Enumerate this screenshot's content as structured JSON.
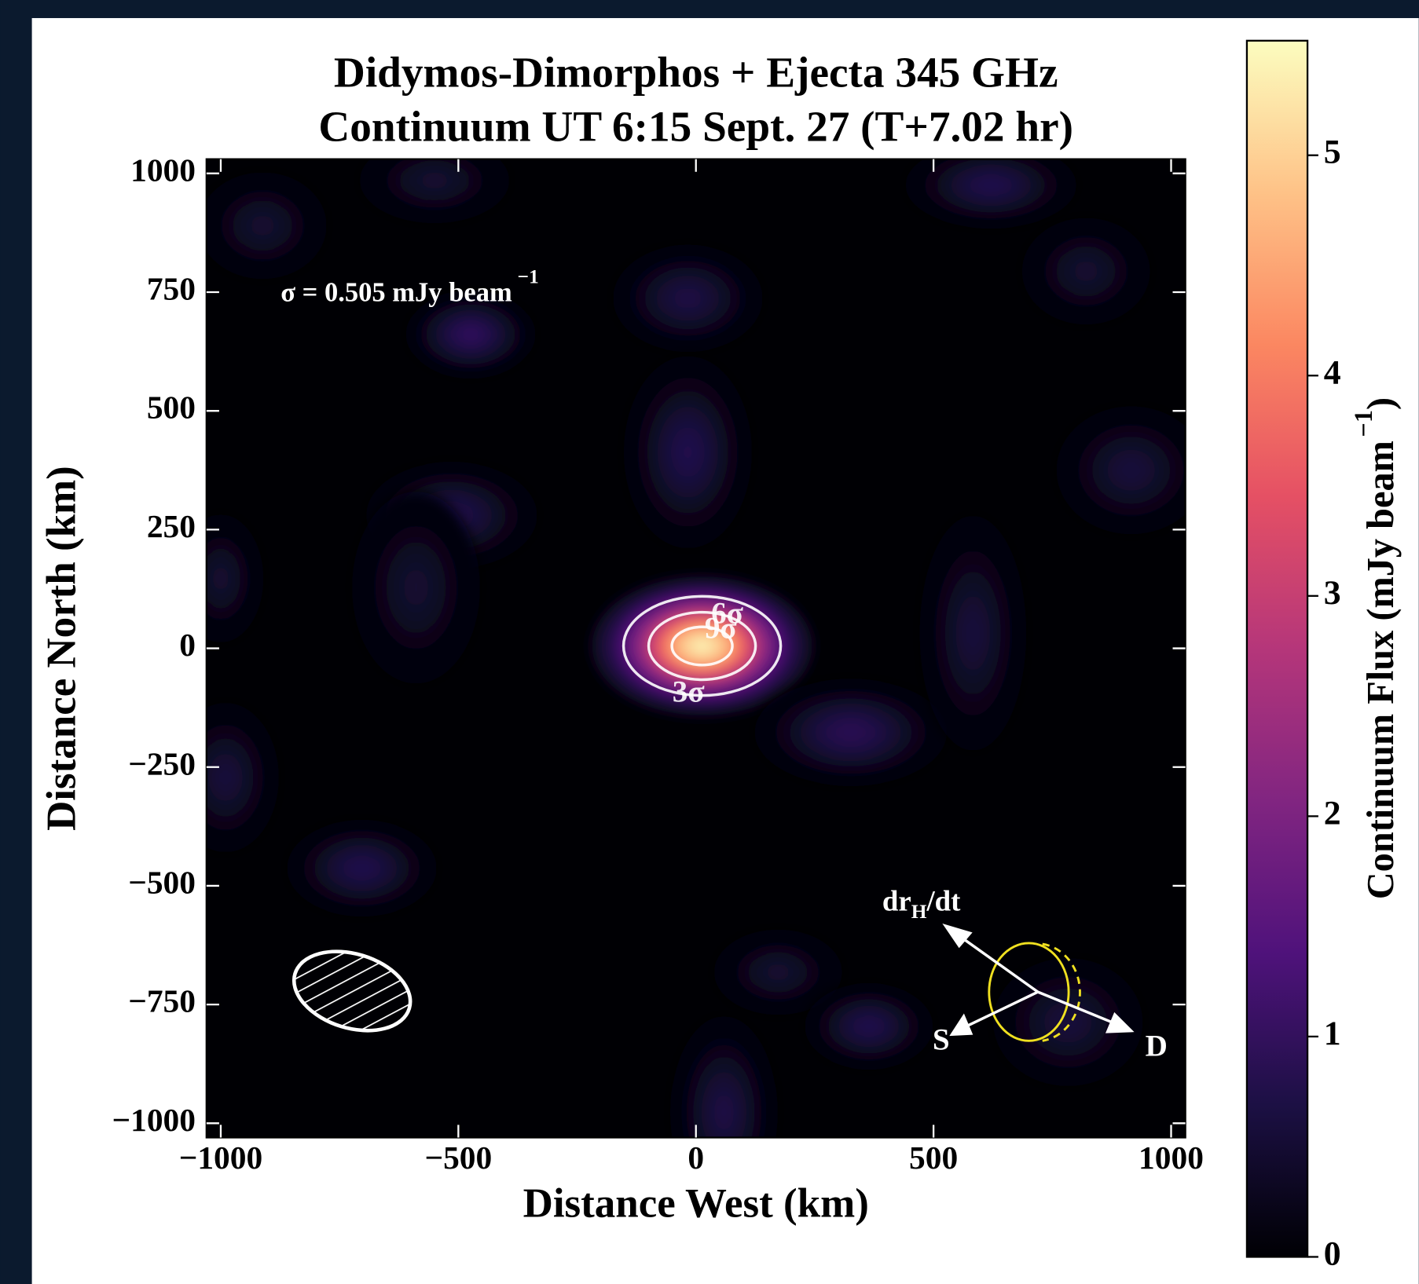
{
  "chart_data": {
    "type": "heatmap",
    "title": [
      "Didymos-Dimorphos + Ejecta 345 GHz",
      "Continuum UT 6:15 Sept. 27 (T+7.02 hr)"
    ],
    "x_label": "Distance West (km)",
    "y_label": "Distance North (km)",
    "xlim": [
      -1030,
      1030
    ],
    "ylim": [
      -1030,
      1030
    ],
    "xticks": [
      {
        "value": -1000,
        "label": "−1000"
      },
      {
        "value": -500,
        "label": "−500"
      },
      0,
      500,
      1000
    ],
    "yticks": [
      1000,
      750,
      500,
      250,
      0,
      {
        "value": -250,
        "label": "−250"
      },
      {
        "value": -500,
        "label": "−500"
      },
      {
        "value": -750,
        "label": "−750"
      },
      {
        "value": -1000,
        "label": "−1000"
      }
    ],
    "colormap": [
      "#000004",
      "#1c1044",
      "#4f127b",
      "#812581",
      "#b5367a",
      "#e55064",
      "#fb8761",
      "#fec287",
      "#fcfdbf"
    ],
    "colorbar": {
      "label": [
        "Continuum Flux (mJy beam",
        "−1",
        ")"
      ],
      "lim": [
        0,
        5.52
      ],
      "ticks": [
        0,
        1,
        2,
        3,
        4,
        5
      ]
    },
    "sigma": {
      "value": 0.505,
      "label": "σ = 0.505 mJy beam"
    },
    "sigma_exponent": "−1",
    "contours": [
      {
        "value": 3,
        "label": "3σ"
      },
      {
        "value": 6,
        "label": "6σ"
      },
      {
        "value": 9,
        "label": "9σ"
      }
    ],
    "blobs": [
      {
        "x": 13,
        "y": 5,
        "sx": 103,
        "sy": 65,
        "value": 5.5
      },
      {
        "x": -474,
        "y": 661,
        "sx": 60,
        "sy": 40,
        "value": 1.0
      },
      {
        "x": 621,
        "y": 975,
        "sx": 80,
        "sy": 40,
        "value": 0.8
      },
      {
        "x": -17,
        "y": 737,
        "sx": 70,
        "sy": 50,
        "value": 0.7
      },
      {
        "x": -17,
        "y": 413,
        "sx": 60,
        "sy": 90,
        "value": 0.8
      },
      {
        "x": -514,
        "y": 280,
        "sx": 80,
        "sy": 50,
        "value": 0.8
      },
      {
        "x": 326,
        "y": -177,
        "sx": 90,
        "sy": 50,
        "value": 0.9
      },
      {
        "x": -703,
        "y": -463,
        "sx": 70,
        "sy": 45,
        "value": 0.8
      },
      {
        "x": 173,
        "y": -682,
        "sx": 60,
        "sy": 40,
        "value": 0.5
      },
      {
        "x": 364,
        "y": -796,
        "sx": 60,
        "sy": 40,
        "value": 0.8
      },
      {
        "x": 59,
        "y": -977,
        "sx": 50,
        "sy": 90,
        "value": 0.7
      },
      {
        "x": 583,
        "y": 32,
        "sx": 50,
        "sy": 110,
        "value": 0.6
      },
      {
        "x": -589,
        "y": 128,
        "sx": 60,
        "sy": 90,
        "value": 0.5
      },
      {
        "x": 916,
        "y": 375,
        "sx": 70,
        "sy": 60,
        "value": 0.6
      },
      {
        "x": -990,
        "y": -272,
        "sx": 50,
        "sy": 70,
        "value": 0.6
      },
      {
        "x": -1000,
        "y": 147,
        "sx": 40,
        "sy": 60,
        "value": 0.5
      },
      {
        "x": -912,
        "y": 890,
        "sx": 60,
        "sy": 50,
        "value": 0.5
      },
      {
        "x": -550,
        "y": 985,
        "sx": 70,
        "sy": 40,
        "value": 0.5
      },
      {
        "x": 821,
        "y": 794,
        "sx": 60,
        "sy": 50,
        "value": 0.5
      },
      {
        "x": 783,
        "y": -787,
        "sx": 70,
        "sy": 60,
        "value": 0.6
      }
    ],
    "compass": {
      "velocity": [
        "dr",
        "H",
        "/dt"
      ],
      "sun": "S",
      "dimorphos": "D"
    }
  }
}
